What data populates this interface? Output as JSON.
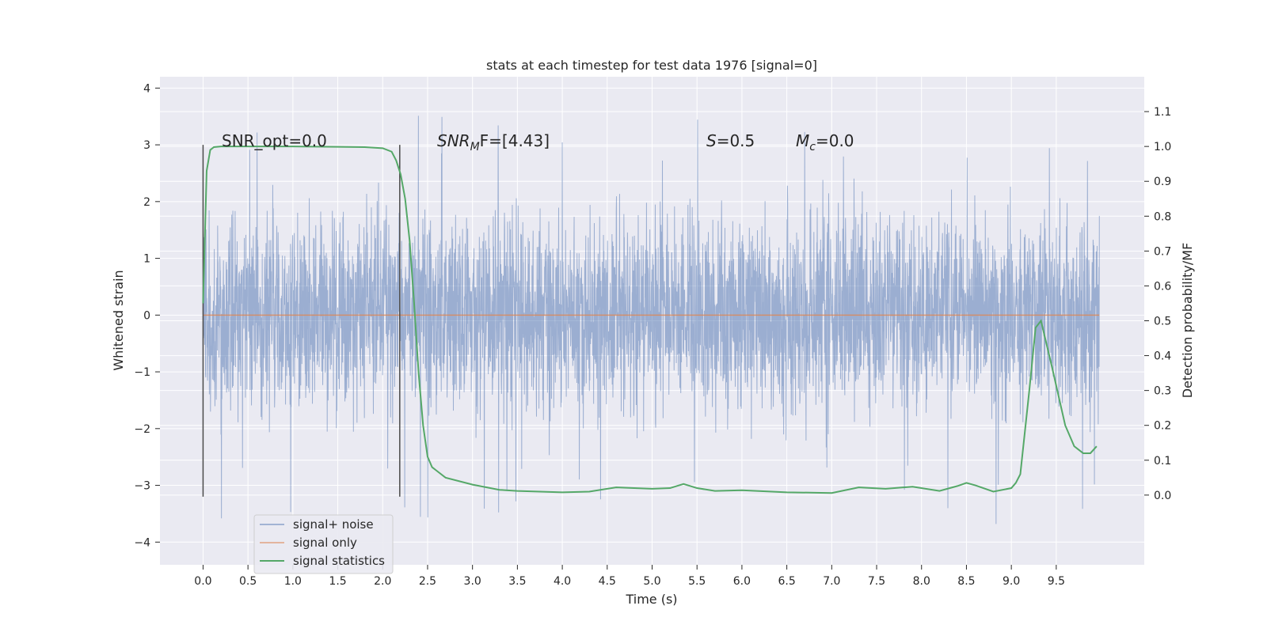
{
  "chart_data": {
    "type": "line",
    "title": "stats at each timestep for test data 1976 [signal=0]",
    "xlabel": "Time (s)",
    "ylabel": "Whitened strain",
    "ylabel_right": "Detection probability/MF",
    "xlim": [
      -0.48,
      10.48
    ],
    "ylim": [
      -4.4,
      4.2
    ],
    "ylim_right": [
      -0.2,
      1.2
    ],
    "x_ticks": [
      "0.0",
      "0.5",
      "1.0",
      "1.5",
      "2.0",
      "2.5",
      "3.0",
      "3.5",
      "4.0",
      "4.5",
      "5.0",
      "5.5",
      "6.0",
      "6.5",
      "7.0",
      "7.5",
      "8.0",
      "8.5",
      "9.0",
      "9.5"
    ],
    "y_ticks": [
      "4",
      "3",
      "2",
      "1",
      "0",
      "−1",
      "−2",
      "−3",
      "−4"
    ],
    "y_ticks_right": [
      "1.1",
      "1.0",
      "0.9",
      "0.8",
      "0.7",
      "0.6",
      "0.5",
      "0.4",
      "0.3",
      "0.2",
      "0.1",
      "0.0"
    ],
    "grid": true,
    "legend_position": "lower-left",
    "annotations": {
      "snr_opt": "SNR_opt=0.0",
      "snr_mf_main": "SNR",
      "snr_mf_sub": "M",
      "snr_mf_rest": "F=[4.43]",
      "s_main": "S",
      "s_rest": "=0.5",
      "mc_main": "M",
      "mc_sub": "c",
      "mc_rest": "=0.0"
    },
    "vlines": [
      0.0,
      2.19
    ],
    "colors": {
      "background": "#eaeaf2",
      "grid": "#ffffff",
      "noise": "#4c72b0",
      "signal": "#dd8452",
      "stats": "#55a868",
      "vline": "#4a4a4a"
    },
    "series": [
      {
        "name": "signal+ noise",
        "kind": "noise",
        "x_range": [
          0.0,
          9.98
        ],
        "envelope": {
          "typical_abs": 1.0,
          "peak_max": 3.9,
          "trough_min": -3.8
        }
      },
      {
        "name": "signal only",
        "kind": "flat",
        "x": [
          0.0,
          9.98
        ],
        "y": [
          0.0,
          0.0
        ]
      },
      {
        "name": "signal statistics",
        "kind": "line",
        "axis": "right",
        "x": [
          0.0,
          0.04,
          0.08,
          0.12,
          0.2,
          0.3,
          0.5,
          1.0,
          1.5,
          1.8,
          2.0,
          2.1,
          2.15,
          2.2,
          2.25,
          2.3,
          2.35,
          2.4,
          2.45,
          2.5,
          2.55,
          2.6,
          2.7,
          3.0,
          3.3,
          3.5,
          4.0,
          4.3,
          4.6,
          5.0,
          5.2,
          5.35,
          5.5,
          5.7,
          6.0,
          6.5,
          7.0,
          7.3,
          7.6,
          7.9,
          8.2,
          8.4,
          8.5,
          8.6,
          8.8,
          9.0,
          9.05,
          9.1,
          9.2,
          9.27,
          9.33,
          9.45,
          9.6,
          9.7,
          9.8,
          9.88,
          9.95
        ],
        "y": [
          0.55,
          0.93,
          0.99,
          0.998,
          1.0,
          1.0,
          1.0,
          1.0,
          0.999,
          0.998,
          0.995,
          0.985,
          0.96,
          0.92,
          0.85,
          0.73,
          0.55,
          0.35,
          0.2,
          0.11,
          0.08,
          0.07,
          0.05,
          0.03,
          0.015,
          0.012,
          0.008,
          0.01,
          0.022,
          0.018,
          0.02,
          0.032,
          0.02,
          0.012,
          0.014,
          0.008,
          0.006,
          0.022,
          0.018,
          0.024,
          0.012,
          0.026,
          0.035,
          0.028,
          0.01,
          0.02,
          0.035,
          0.06,
          0.3,
          0.48,
          0.5,
          0.37,
          0.2,
          0.14,
          0.12,
          0.12,
          0.14
        ]
      }
    ]
  }
}
